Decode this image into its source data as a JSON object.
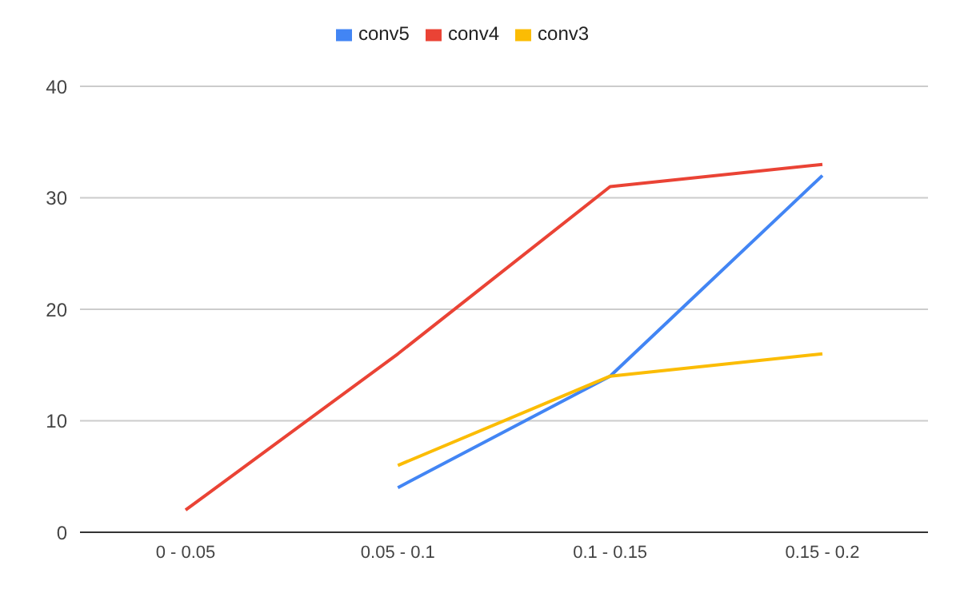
{
  "chart_data": {
    "type": "line",
    "categories": [
      "0 - 0.05",
      "0.05 - 0.1",
      "0.1 - 0.15",
      "0.15 - 0.2"
    ],
    "series": [
      {
        "name": "conv5",
        "color": "#4285f4",
        "values": [
          null,
          4,
          14,
          32
        ]
      },
      {
        "name": "conv4",
        "color": "#ea4335",
        "values": [
          2,
          16,
          31,
          33
        ]
      },
      {
        "name": "conv3",
        "color": "#fbbc04",
        "values": [
          null,
          6,
          14,
          16
        ]
      }
    ],
    "ylim": [
      0,
      40
    ],
    "yticks": [
      0,
      10,
      20,
      30,
      40
    ],
    "grid": "y",
    "legend": "top",
    "marker": "none",
    "line_style": "solid"
  }
}
